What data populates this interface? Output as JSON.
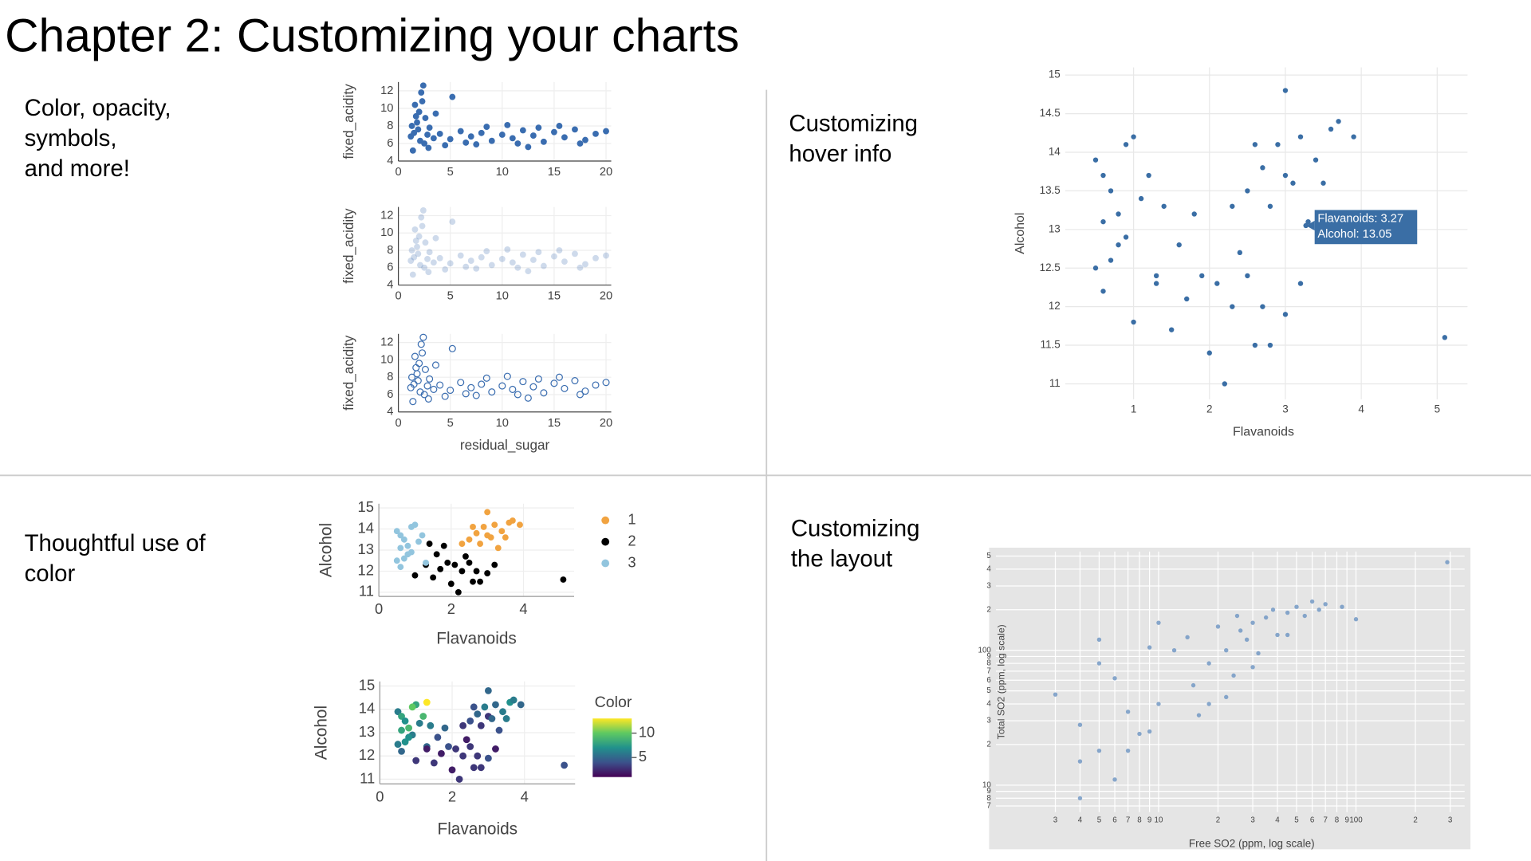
{
  "title": "Chapter 2: Customizing your charts",
  "captions": [
    [
      "Color, opacity,",
      "symbols,",
      "and more!"
    ],
    [
      "Customizing",
      "hover info"
    ],
    [
      "Thoughtful use of",
      "color"
    ],
    [
      "Customizing",
      "the layout"
    ]
  ],
  "chart_data": [
    {
      "type": "scatter",
      "x_label": "residual_sugar",
      "y_label": "fixed_acidity",
      "color": "#3a6db0",
      "panels": [
        {
          "opacity": 1,
          "symbol": "circle"
        },
        {
          "opacity": 0.25,
          "symbol": "circle"
        },
        {
          "opacity": 1,
          "symbol": "circle-open"
        }
      ],
      "x": [
        1.2,
        1.5,
        1.8,
        2.0,
        2.2,
        2.4,
        1.6,
        1.9,
        2.1,
        2.6,
        2.8,
        1.4,
        2.3,
        1.7,
        2.5,
        3.0,
        3.4,
        5.2,
        4.0,
        5.0,
        6.0,
        7.0,
        8.0,
        9.0,
        10.0,
        11.0,
        12.0,
        13.0,
        14.0,
        15.0,
        16.0,
        17.0,
        18.0,
        19.0,
        20.0,
        7.5,
        12.5,
        15.5,
        3.6,
        4.5,
        10.5,
        17.5,
        8.5,
        6.5,
        1.3,
        2.9,
        13.5,
        11.5
      ],
      "y": [
        6.8,
        7.2,
        8.4,
        9.6,
        11.8,
        12.6,
        10.4,
        7.6,
        6.3,
        8.9,
        7.0,
        5.2,
        10.8,
        9.1,
        6.0,
        7.8,
        6.6,
        11.3,
        7.1,
        6.5,
        7.4,
        6.8,
        7.2,
        6.3,
        7.0,
        6.6,
        7.5,
        6.9,
        6.2,
        7.3,
        6.7,
        7.6,
        6.4,
        7.1,
        7.4,
        5.9,
        5.6,
        8.0,
        9.4,
        5.8,
        8.1,
        6.0,
        7.9,
        6.1,
        8.0,
        5.5,
        7.8,
        6.0
      ],
      "xlim": [
        0,
        20.5
      ],
      "ylim": [
        4,
        13
      ],
      "xticks": [
        0,
        5,
        10,
        15,
        20
      ],
      "yticks": [
        4,
        6,
        8,
        10,
        12
      ],
      "grid": true
    },
    {
      "type": "scatter",
      "x_label": "Flavanoids",
      "y_label": "Alcohol",
      "color": "#3a6ea5",
      "x": [
        0.5,
        0.6,
        0.7,
        0.6,
        0.8,
        0.9,
        0.7,
        1.0,
        1.1,
        0.8,
        1.2,
        0.6,
        0.9,
        1.3,
        0.5,
        1.0,
        1.3,
        1.5,
        1.7,
        1.9,
        2.0,
        2.2,
        2.3,
        2.4,
        2.6,
        2.8,
        1.6,
        2.1,
        3.0,
        1.8,
        2.5,
        5.1,
        3.2,
        1.4,
        2.7,
        2.5,
        2.7,
        2.9,
        3.0,
        3.2,
        3.3,
        3.4,
        3.6,
        3.0,
        2.8,
        3.7,
        3.9,
        2.6,
        3.1,
        2.3,
        3.5,
        3.27
      ],
      "y": [
        13.9,
        13.7,
        13.5,
        12.2,
        13.2,
        12.9,
        12.6,
        14.2,
        13.4,
        12.8,
        13.7,
        13.1,
        14.1,
        12.4,
        12.5,
        11.8,
        12.3,
        11.7,
        12.1,
        12.4,
        11.4,
        11.0,
        12.0,
        12.7,
        11.5,
        11.5,
        12.8,
        12.3,
        11.9,
        13.2,
        12.4,
        11.6,
        12.3,
        13.3,
        12.0,
        13.5,
        13.8,
        14.1,
        13.7,
        14.2,
        13.1,
        13.9,
        14.3,
        14.8,
        13.3,
        14.4,
        14.2,
        14.1,
        13.6,
        13.3,
        13.6,
        13.05
      ],
      "xlim": [
        0.1,
        5.4
      ],
      "ylim": [
        10.8,
        15.1
      ],
      "xticks": [
        1,
        2,
        3,
        4,
        5
      ],
      "yticks": [
        11,
        11.5,
        12,
        12.5,
        13,
        13.5,
        14,
        14.5,
        15
      ],
      "grid": true,
      "hover": {
        "x": 3.27,
        "y": 13.05,
        "lines": [
          "Flavanoids: 3.27",
          "Alcohol: 13.05"
        ],
        "color": "#3a6ea5"
      }
    },
    {
      "type": "scatter",
      "x_label": "Flavanoids",
      "y_label": "Alcohol",
      "legend": "right",
      "series": [
        {
          "name": "1",
          "color": "#f1a340",
          "x": [
            2.5,
            2.7,
            2.9,
            3.0,
            3.2,
            3.3,
            3.4,
            3.6,
            3.0,
            2.8,
            3.7,
            3.9,
            2.6,
            3.1,
            2.3,
            3.5
          ],
          "y": [
            13.5,
            13.8,
            14.1,
            13.7,
            14.2,
            13.1,
            13.9,
            14.3,
            14.8,
            13.3,
            14.4,
            14.2,
            14.1,
            13.6,
            13.3,
            13.6
          ]
        },
        {
          "name": "2",
          "color": "#000000",
          "x": [
            1.0,
            1.3,
            1.5,
            1.7,
            1.9,
            2.0,
            2.2,
            2.3,
            2.4,
            2.6,
            2.8,
            1.6,
            2.1,
            3.0,
            1.8,
            2.5,
            5.1,
            3.2,
            1.4,
            2.7
          ],
          "y": [
            11.8,
            12.3,
            11.7,
            12.1,
            12.4,
            11.4,
            11.0,
            12.0,
            12.7,
            11.5,
            11.5,
            12.8,
            12.3,
            11.9,
            13.2,
            12.4,
            11.6,
            12.3,
            13.3,
            12.0
          ]
        },
        {
          "name": "3",
          "color": "#92c5de",
          "x": [
            0.5,
            0.6,
            0.7,
            0.6,
            0.8,
            0.9,
            0.7,
            1.0,
            1.1,
            0.8,
            1.2,
            0.6,
            0.9,
            1.3,
            0.5
          ],
          "y": [
            13.9,
            13.7,
            13.5,
            12.2,
            13.2,
            12.9,
            12.6,
            14.2,
            13.4,
            12.8,
            13.7,
            13.1,
            14.1,
            12.4,
            12.5
          ]
        }
      ],
      "xlim": [
        0,
        5.4
      ],
      "ylim": [
        10.8,
        15.2
      ],
      "xticks": [
        0,
        2,
        4
      ],
      "yticks": [
        11,
        12,
        13,
        14,
        15
      ],
      "grid": true
    },
    {
      "type": "scatter",
      "x_label": "Flavanoids",
      "y_label": "Alcohol",
      "colorbar_title": "Color",
      "x": [
        0.5,
        0.6,
        0.7,
        0.6,
        0.8,
        0.9,
        0.7,
        1.0,
        1.1,
        0.8,
        1.2,
        0.6,
        0.9,
        1.3,
        0.5,
        1.0,
        1.3,
        1.5,
        1.7,
        1.9,
        2.0,
        2.2,
        2.3,
        2.4,
        2.6,
        2.8,
        1.6,
        2.1,
        3.0,
        1.8,
        2.5,
        5.1,
        3.2,
        1.4,
        2.7,
        2.5,
        2.7,
        2.9,
        3.0,
        3.2,
        3.3,
        3.4,
        3.6,
        3.0,
        2.8,
        3.7,
        3.9,
        2.6,
        3.1,
        2.3,
        3.5,
        1.3
      ],
      "y": [
        13.9,
        13.7,
        13.5,
        12.2,
        13.2,
        12.9,
        12.6,
        14.2,
        13.4,
        12.8,
        13.7,
        13.1,
        14.1,
        12.4,
        12.5,
        11.8,
        12.3,
        11.7,
        12.1,
        12.4,
        11.4,
        11.0,
        12.0,
        12.7,
        11.5,
        11.5,
        12.8,
        12.3,
        11.9,
        13.2,
        12.4,
        11.6,
        12.3,
        13.3,
        12.0,
        13.5,
        13.8,
        14.1,
        13.7,
        14.2,
        13.1,
        13.9,
        14.3,
        14.8,
        13.3,
        14.4,
        14.2,
        14.1,
        13.6,
        13.3,
        13.6,
        14.3
      ],
      "color_values": [
        6,
        8,
        7,
        5,
        9,
        6,
        7,
        8,
        6,
        7,
        9,
        8,
        10,
        5,
        6,
        3,
        2,
        3,
        2,
        4,
        2,
        3,
        3,
        2,
        3,
        3,
        4,
        3,
        4,
        5,
        3,
        4,
        2,
        6,
        3,
        4,
        5,
        6,
        3,
        5,
        4,
        6,
        7,
        5,
        3,
        6,
        5,
        4,
        5,
        3,
        6,
        13
      ],
      "colorscale": [
        "#440154",
        "#3b528b",
        "#21918c",
        "#5ec962",
        "#fde725"
      ],
      "clim": [
        1,
        13
      ],
      "colorbar_ticks": [
        5,
        10
      ],
      "xlim": [
        0,
        5.4
      ],
      "ylim": [
        10.8,
        15.2
      ],
      "xticks": [
        0,
        2,
        4
      ],
      "yticks": [
        11,
        12,
        13,
        14,
        15
      ],
      "grid": true
    },
    {
      "type": "scatter",
      "x_label": "Free SO2 (ppm, log scale)",
      "y_label": "Total SO2 (ppm, log scale)",
      "color": "#6b93c2",
      "background": "#e5e5e5",
      "log_x": true,
      "log_y": true,
      "x": [
        3,
        4,
        4,
        4,
        5,
        5,
        5,
        6,
        6,
        7,
        7,
        8,
        9,
        9,
        10,
        10,
        12,
        14,
        15,
        18,
        18,
        20,
        22,
        24,
        25,
        26,
        28,
        30,
        32,
        35,
        38,
        40,
        45,
        50,
        55,
        60,
        65,
        70,
        85,
        100,
        290,
        22,
        16,
        30,
        45
      ],
      "y": [
        47,
        28,
        15,
        8,
        18,
        120,
        80,
        11,
        62,
        35,
        18,
        24,
        105,
        25,
        160,
        40,
        100,
        125,
        55,
        80,
        40,
        150,
        100,
        65,
        180,
        140,
        120,
        160,
        95,
        175,
        200,
        130,
        190,
        210,
        180,
        230,
        200,
        220,
        210,
        170,
        450,
        45,
        33,
        75,
        130
      ],
      "xlim": [
        1.5,
        355
      ],
      "ylim": [
        6.3,
        540
      ],
      "xticks": [
        3,
        4,
        5,
        6,
        7,
        8,
        9,
        10,
        {
          "value": 20,
          "label": "2"
        },
        {
          "value": 30,
          "label": "3"
        },
        {
          "value": 40,
          "label": "4"
        },
        {
          "value": 50,
          "label": "5"
        },
        {
          "value": 60,
          "label": "6"
        },
        {
          "value": 70,
          "label": "7"
        },
        {
          "value": 80,
          "label": "8"
        },
        {
          "value": 90,
          "label": "9"
        },
        100,
        {
          "value": 200,
          "label": "2"
        },
        {
          "value": 300,
          "label": "3"
        }
      ],
      "yticks": [
        7,
        8,
        9,
        10,
        {
          "value": 20,
          "label": "2"
        },
        {
          "value": 30,
          "label": "3"
        },
        {
          "value": 40,
          "label": "4"
        },
        {
          "value": 50,
          "label": "5"
        },
        {
          "value": 60,
          "label": "6"
        },
        {
          "value": 70,
          "label": "7"
        },
        {
          "value": 80,
          "label": "8"
        },
        {
          "value": 90,
          "label": "9"
        },
        100,
        {
          "value": 200,
          "label": "2"
        },
        {
          "value": 300,
          "label": "3"
        },
        {
          "value": 400,
          "label": "4"
        },
        {
          "value": 500,
          "label": "5"
        }
      ],
      "grid": true
    }
  ]
}
